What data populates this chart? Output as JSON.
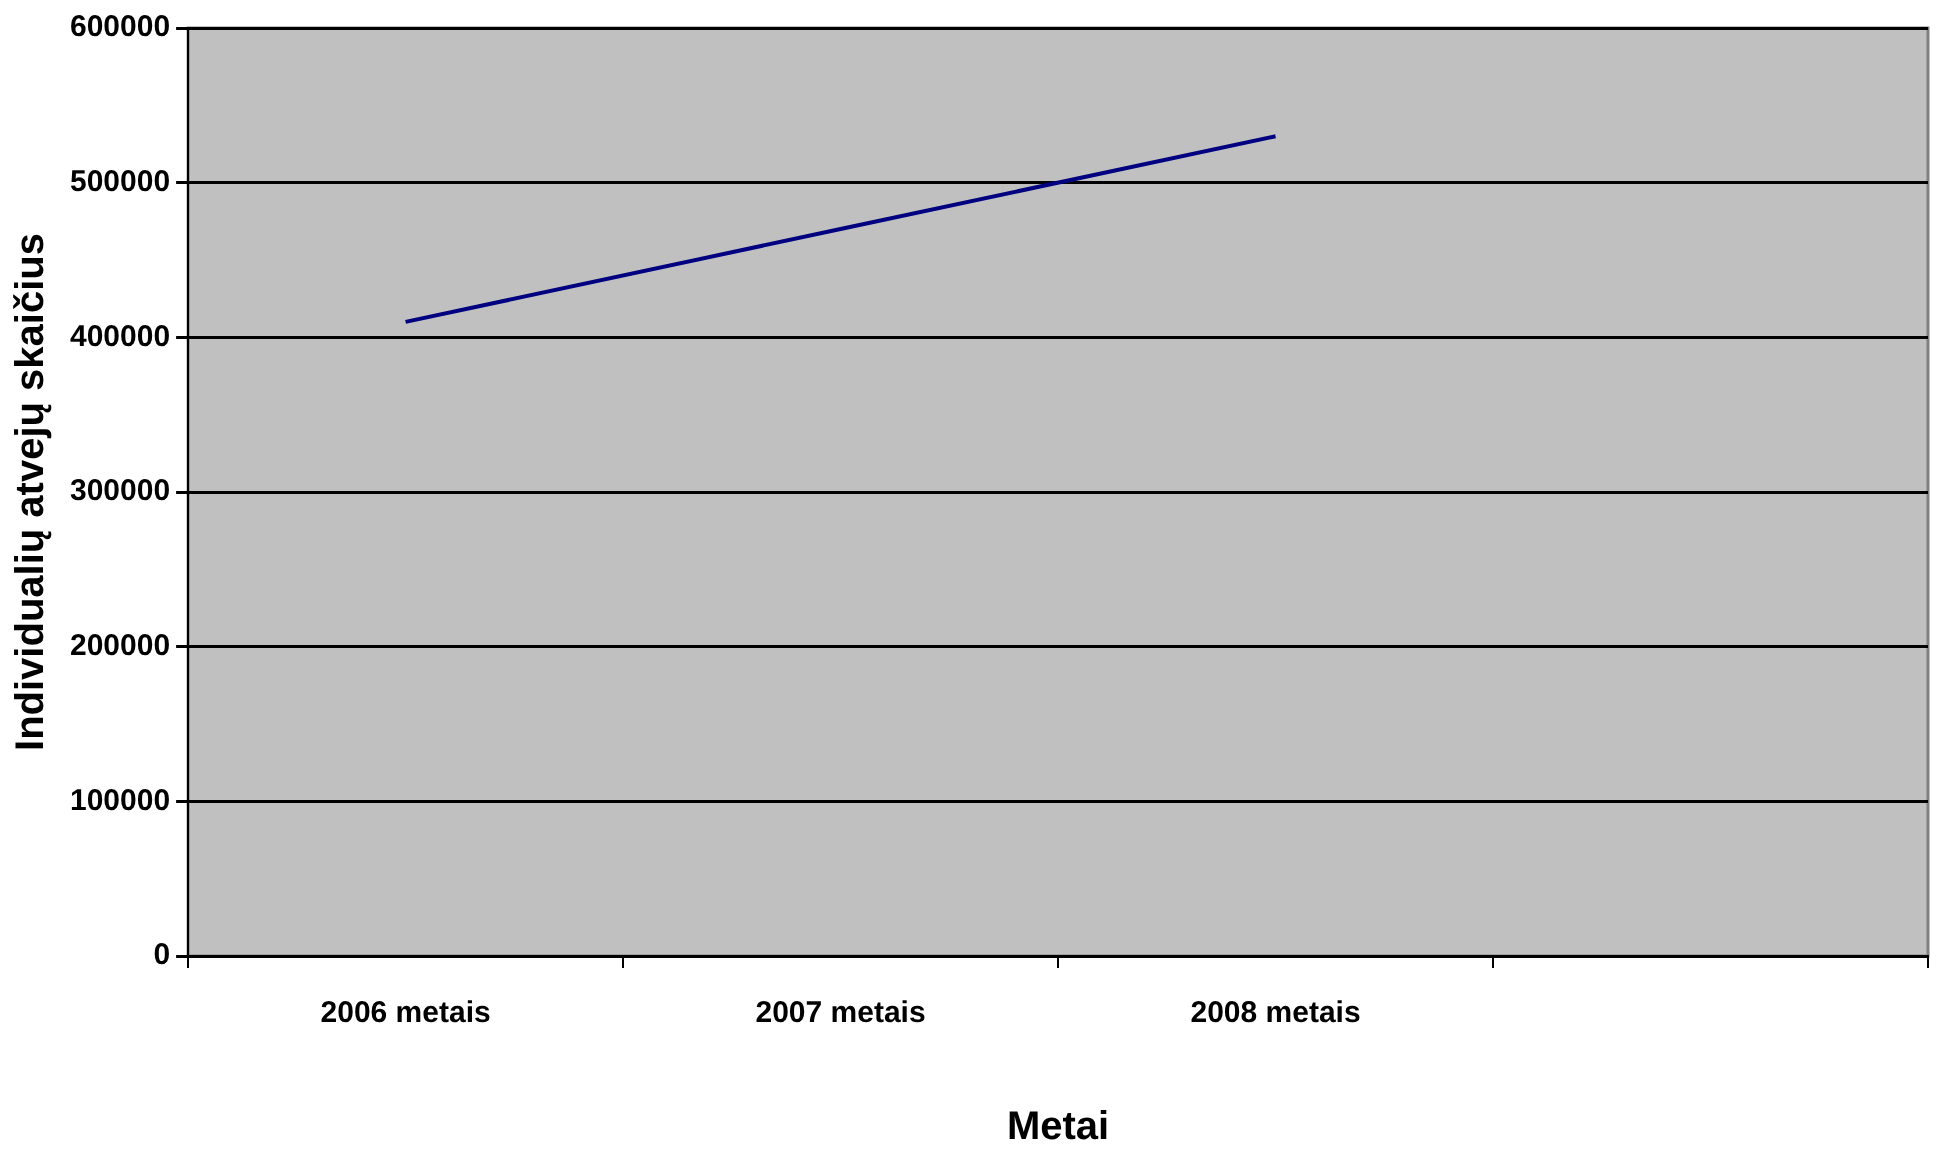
{
  "chart_data": {
    "type": "line",
    "xlabel": "Metai",
    "ylabel": "Individualių atvejų skaičius",
    "categories": [
      "2006 metais",
      "2007 metais",
      "2008 metais",
      null
    ],
    "series": [
      {
        "color": "#000080",
        "values": [
          410000,
          470000,
          530000,
          null
        ]
      }
    ],
    "ylim": [
      0,
      600000
    ],
    "yticks": [
      0,
      100000,
      200000,
      300000,
      400000,
      500000,
      600000
    ],
    "grid": "y",
    "legend": false,
    "marker": "none",
    "line_style": "solid"
  }
}
